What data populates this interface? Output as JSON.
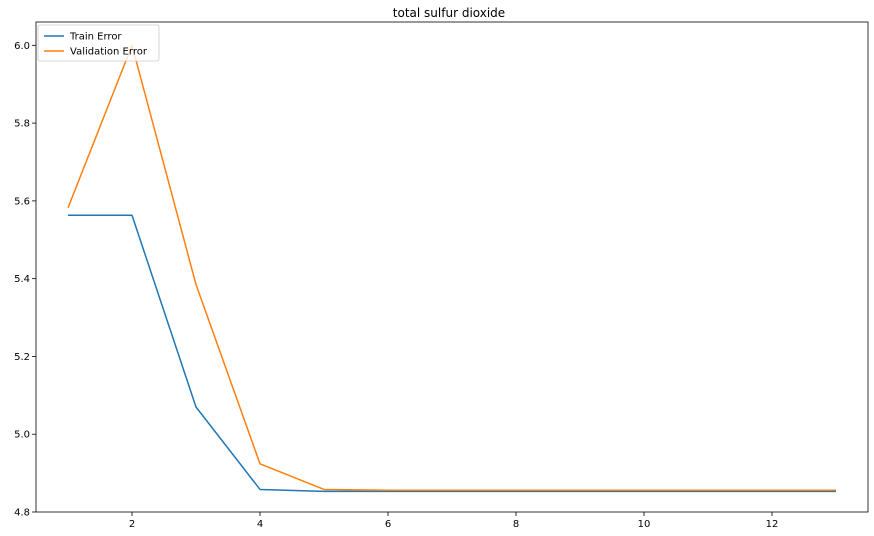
{
  "chart_data": {
    "type": "line",
    "title": "total sulfur dioxide",
    "xlabel": "",
    "ylabel": "",
    "xlim": [
      0.5,
      13.5
    ],
    "ylim": [
      4.8,
      6.06
    ],
    "xticks": [
      2,
      4,
      6,
      8,
      10,
      12
    ],
    "yticks": [
      4.8,
      5.0,
      5.2,
      5.4,
      5.6,
      5.8,
      6.0
    ],
    "ytick_labels": [
      "4.8",
      "5.0",
      "5.2",
      "5.4",
      "5.6",
      "5.8",
      "6.0"
    ],
    "grid": false,
    "legend_position": "top-left",
    "x": [
      1,
      2,
      3,
      4,
      5,
      6,
      7,
      8,
      9,
      10,
      11,
      12,
      13
    ],
    "series": [
      {
        "name": "Train Error",
        "color": "#1f77b4",
        "values": [
          5.563,
          5.563,
          5.07,
          4.858,
          4.853,
          4.853,
          4.853,
          4.853,
          4.853,
          4.853,
          4.853,
          4.853,
          4.853
        ]
      },
      {
        "name": "Validation Error",
        "color": "#ff7f0e",
        "values": [
          5.582,
          6.0,
          5.385,
          4.924,
          4.858,
          4.856,
          4.856,
          4.856,
          4.856,
          4.856,
          4.856,
          4.856,
          4.856
        ]
      }
    ]
  }
}
